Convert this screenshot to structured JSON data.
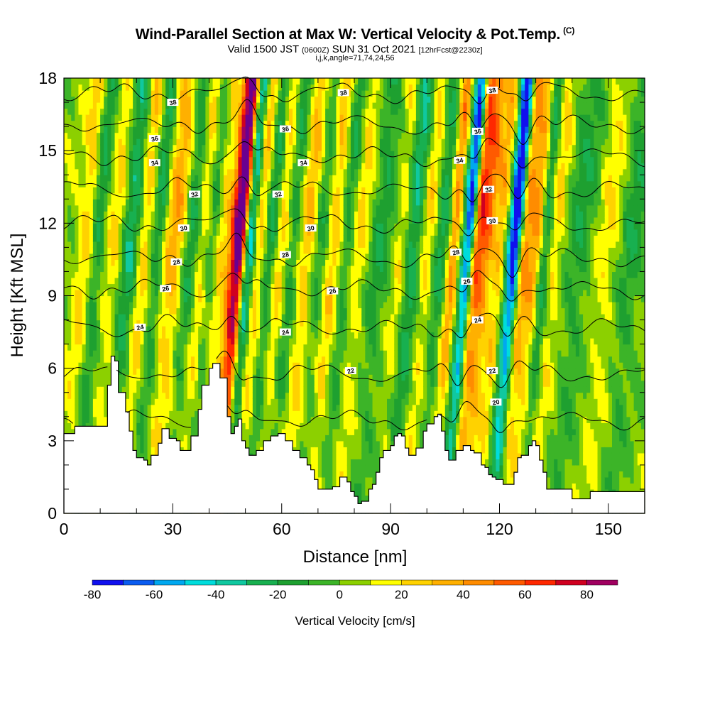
{
  "header": {
    "title": "Wind-Parallel Section at Max W: Vertical Velocity & Pot.Temp.",
    "copyright": "(C)",
    "subtitle_a": "Valid 1500 JST",
    "subtitle_zulu": "(0600Z)",
    "subtitle_b": "SUN 31 Oct 2021",
    "subtitle_fcst": "[12hrFcst@2230z]",
    "indices": "i,j,k,angle=71,74,24,56"
  },
  "colorbar": {
    "label": "Vertical Velocity [cm/s]",
    "tick_labels": [
      "-80",
      "-60",
      "-40",
      "-20",
      "0",
      "20",
      "40",
      "60",
      "80"
    ],
    "tick_values": [
      -80,
      -60,
      -40,
      -20,
      0,
      20,
      40,
      60,
      80
    ],
    "bins": [
      -80,
      -70,
      -60,
      -50,
      -40,
      -30,
      -20,
      -10,
      0,
      10,
      20,
      30,
      40,
      50,
      60,
      70,
      80,
      90
    ],
    "colors": [
      "#1010ee",
      "#0a5cf0",
      "#00a8f0",
      "#00dcdc",
      "#10c8a0",
      "#18b050",
      "#1ea030",
      "#3cb428",
      "#8cd000",
      "#ffff00",
      "#ffd200",
      "#ffb000",
      "#ff8c00",
      "#ff5a00",
      "#ff2800",
      "#d00020",
      "#a00060",
      "#6a0090"
    ]
  },
  "chart_data": {
    "type": "heatmap",
    "title": "Wind-Parallel Section at Max W: Vertical Velocity & Pot.Temp.",
    "xlabel": "Distance [nm]",
    "ylabel": "Height [Kft MSL]",
    "xlim": [
      0,
      160
    ],
    "ylim": [
      0,
      18
    ],
    "x_ticks": [
      0,
      30,
      60,
      90,
      120,
      150
    ],
    "x_tick_labels": [
      "0",
      "30",
      "60",
      "90",
      "120",
      "150"
    ],
    "y_ticks": [
      0,
      3,
      6,
      9,
      12,
      15,
      18
    ],
    "y_tick_labels": [
      "0",
      "3",
      "6",
      "9",
      "12",
      "15",
      "18"
    ],
    "field": "Vertical Velocity [cm/s]",
    "contour_field": "Potential Temperature [C]",
    "terrain_kft": [
      [
        0,
        3.3
      ],
      [
        3,
        3.6
      ],
      [
        8,
        3.6
      ],
      [
        12,
        5.3
      ],
      [
        13,
        6.5
      ],
      [
        14,
        6.3
      ],
      [
        15,
        5.0
      ],
      [
        17,
        4.2
      ],
      [
        18,
        3.4
      ],
      [
        19,
        2.6
      ],
      [
        20,
        2.3
      ],
      [
        22,
        2.2
      ],
      [
        23,
        2.0
      ],
      [
        24,
        2.4
      ],
      [
        26,
        2.9
      ],
      [
        27,
        3.5
      ],
      [
        28,
        3.5
      ],
      [
        29,
        3.1
      ],
      [
        31,
        3.0
      ],
      [
        32,
        2.6
      ],
      [
        33,
        2.6
      ],
      [
        35,
        3.2
      ],
      [
        37,
        4.3
      ],
      [
        38,
        5.3
      ],
      [
        40,
        6.0
      ],
      [
        41,
        6.2
      ],
      [
        42,
        6.2
      ],
      [
        43,
        5.6
      ],
      [
        45,
        4.0
      ],
      [
        46,
        3.3
      ],
      [
        47,
        3.6
      ],
      [
        48,
        3.9
      ],
      [
        49,
        3.0
      ],
      [
        50,
        2.7
      ],
      [
        51,
        2.4
      ],
      [
        53,
        2.6
      ],
      [
        55,
        3.0
      ],
      [
        57,
        3.2
      ],
      [
        59,
        3.3
      ],
      [
        61,
        3.0
      ],
      [
        63,
        2.6
      ],
      [
        65,
        2.3
      ],
      [
        67,
        2.0
      ],
      [
        68,
        1.8
      ],
      [
        69,
        1.4
      ],
      [
        70,
        1.0
      ],
      [
        72,
        1.0
      ],
      [
        74,
        1.1
      ],
      [
        76,
        1.5
      ],
      [
        78,
        1.3
      ],
      [
        79,
        0.9
      ],
      [
        80,
        0.7
      ],
      [
        81,
        0.4
      ],
      [
        82,
        0.5
      ],
      [
        83,
        0.5
      ],
      [
        84,
        1.0
      ],
      [
        85,
        1.2
      ],
      [
        86,
        1.7
      ],
      [
        87,
        2.3
      ],
      [
        88,
        2.6
      ],
      [
        90,
        2.8
      ],
      [
        91,
        3.2
      ],
      [
        92,
        3.3
      ],
      [
        93,
        3.2
      ],
      [
        94,
        2.7
      ],
      [
        95,
        2.4
      ],
      [
        96,
        2.4
      ],
      [
        97,
        2.7
      ],
      [
        99,
        3.4
      ],
      [
        100,
        3.7
      ],
      [
        102,
        4.0
      ],
      [
        103,
        4.1
      ],
      [
        104,
        3.4
      ],
      [
        105,
        2.6
      ],
      [
        106,
        2.2
      ],
      [
        108,
        2.6
      ],
      [
        110,
        2.8
      ],
      [
        112,
        2.6
      ],
      [
        113,
        2.5
      ],
      [
        115,
        2.0
      ],
      [
        116,
        1.9
      ],
      [
        117,
        1.6
      ],
      [
        118,
        1.5
      ],
      [
        119,
        1.4
      ],
      [
        120,
        1.4
      ],
      [
        121,
        1.2
      ],
      [
        123,
        1.2
      ],
      [
        124,
        1.7
      ],
      [
        125,
        2.3
      ],
      [
        126,
        2.4
      ],
      [
        128,
        2.8
      ],
      [
        129,
        3.0
      ],
      [
        130,
        2.8
      ],
      [
        131,
        2.2
      ],
      [
        132,
        1.7
      ],
      [
        133,
        1.0
      ],
      [
        134,
        1.0
      ],
      [
        135,
        1.0
      ],
      [
        140,
        0.6
      ],
      [
        143,
        0.6
      ],
      [
        145,
        0.9
      ],
      [
        150,
        0.9
      ],
      [
        160,
        0.9
      ]
    ],
    "theta_contours": [
      {
        "label": "20",
        "base_kft": 3.9
      },
      {
        "label": "22",
        "base_kft": 5.8
      },
      {
        "label": "24",
        "base_kft": 7.7
      },
      {
        "label": "26",
        "base_kft": 9.3
      },
      {
        "label": "28",
        "base_kft": 10.6
      },
      {
        "label": "30",
        "base_kft": 12.0
      },
      {
        "label": "32",
        "base_kft": 13.4
      },
      {
        "label": "34",
        "base_kft": 14.8
      },
      {
        "label": "36",
        "base_kft": 16.1
      },
      {
        "label": "38",
        "base_kft": 17.4
      }
    ],
    "contour_labels": [
      {
        "text": "38",
        "x": 30,
        "y": 17.0
      },
      {
        "text": "36",
        "x": 25,
        "y": 15.5
      },
      {
        "text": "34",
        "x": 25,
        "y": 14.5
      },
      {
        "text": "32",
        "x": 36,
        "y": 13.2
      },
      {
        "text": "30",
        "x": 33,
        "y": 11.8
      },
      {
        "text": "28",
        "x": 31,
        "y": 10.4
      },
      {
        "text": "26",
        "x": 28,
        "y": 9.3
      },
      {
        "text": "24",
        "x": 21,
        "y": 7.7
      },
      {
        "text": "36",
        "x": 61,
        "y": 15.9
      },
      {
        "text": "34",
        "x": 66,
        "y": 14.5
      },
      {
        "text": "32",
        "x": 59,
        "y": 13.2
      },
      {
        "text": "30",
        "x": 68,
        "y": 11.8
      },
      {
        "text": "28",
        "x": 61,
        "y": 10.7
      },
      {
        "text": "26",
        "x": 74,
        "y": 9.2
      },
      {
        "text": "24",
        "x": 61,
        "y": 7.5
      },
      {
        "text": "22",
        "x": 79,
        "y": 5.9
      },
      {
        "text": "38",
        "x": 77,
        "y": 17.4
      },
      {
        "text": "38",
        "x": 118,
        "y": 17.5
      },
      {
        "text": "36",
        "x": 114,
        "y": 15.8
      },
      {
        "text": "34",
        "x": 109,
        "y": 14.6
      },
      {
        "text": "32",
        "x": 117,
        "y": 13.4
      },
      {
        "text": "30",
        "x": 118,
        "y": 12.1
      },
      {
        "text": "28",
        "x": 108,
        "y": 10.8
      },
      {
        "text": "26",
        "x": 111,
        "y": 9.6
      },
      {
        "text": "24",
        "x": 114,
        "y": 8.0
      },
      {
        "text": "22",
        "x": 118,
        "y": 5.9
      },
      {
        "text": "20",
        "x": 119,
        "y": 4.6
      }
    ],
    "bands": [
      {
        "x": 5,
        "w": 2.5,
        "amp": 22
      },
      {
        "x": 8,
        "w": 2.0,
        "amp": -28
      },
      {
        "x": 13,
        "w": 2.5,
        "amp": 18
      },
      {
        "x": 17,
        "w": 2.5,
        "amp": -34
      },
      {
        "x": 21,
        "w": 2.0,
        "amp": 24
      },
      {
        "x": 25,
        "w": 2.0,
        "amp": -28
      },
      {
        "x": 27.5,
        "w": 2.0,
        "amp": 20
      },
      {
        "x": 30,
        "w": 2.0,
        "amp": 26
      },
      {
        "x": 34,
        "w": 2.0,
        "amp": -24
      },
      {
        "x": 37,
        "w": 2.0,
        "amp": 18
      },
      {
        "x": 40,
        "w": 2.0,
        "amp": -20
      },
      {
        "x": 42,
        "w": 2.0,
        "amp": 22
      },
      {
        "x": 45.5,
        "w": 1.6,
        "amp": 42
      },
      {
        "x": 47.5,
        "w": 1.8,
        "amp": 95
      },
      {
        "x": 50,
        "w": 1.8,
        "amp": -60
      },
      {
        "x": 52.5,
        "w": 2.0,
        "amp": 30
      },
      {
        "x": 56,
        "w": 2.0,
        "amp": -30
      },
      {
        "x": 58.5,
        "w": 2.0,
        "amp": 24
      },
      {
        "x": 62,
        "w": 2.0,
        "amp": -22
      },
      {
        "x": 66,
        "w": 2.5,
        "amp": 28
      },
      {
        "x": 70,
        "w": 2.5,
        "amp": -24
      },
      {
        "x": 73,
        "w": 2.5,
        "amp": 32
      },
      {
        "x": 77,
        "w": 2.5,
        "amp": -26
      },
      {
        "x": 80,
        "w": 2.5,
        "amp": 22
      },
      {
        "x": 86,
        "w": 3.0,
        "amp": -22
      },
      {
        "x": 92,
        "w": 2.0,
        "amp": 18
      },
      {
        "x": 95,
        "w": 2.5,
        "amp": -36
      },
      {
        "x": 99,
        "w": 2.0,
        "amp": 20
      },
      {
        "x": 103,
        "w": 2.0,
        "amp": -28
      },
      {
        "x": 106.5,
        "w": 1.8,
        "amp": 46
      },
      {
        "x": 109,
        "w": 1.8,
        "amp": -34
      },
      {
        "x": 110.5,
        "w": 1.3,
        "amp": -58
      },
      {
        "x": 113,
        "w": 1.8,
        "amp": 52
      },
      {
        "x": 115.5,
        "w": 1.8,
        "amp": 38
      },
      {
        "x": 119,
        "w": 2.0,
        "amp": 28
      },
      {
        "x": 122,
        "w": 1.5,
        "amp": -46
      },
      {
        "x": 123.5,
        "w": 1.5,
        "amp": -66
      },
      {
        "x": 126,
        "w": 1.8,
        "amp": 40
      },
      {
        "x": 129,
        "w": 1.8,
        "amp": 34
      },
      {
        "x": 131.5,
        "w": 1.8,
        "amp": -36
      },
      {
        "x": 134,
        "w": 2.5,
        "amp": 22
      },
      {
        "x": 141,
        "w": 4.0,
        "amp": -20
      },
      {
        "x": 149,
        "w": 4.0,
        "amp": 14
      },
      {
        "x": 155,
        "w": 3.5,
        "amp": -22
      }
    ]
  }
}
